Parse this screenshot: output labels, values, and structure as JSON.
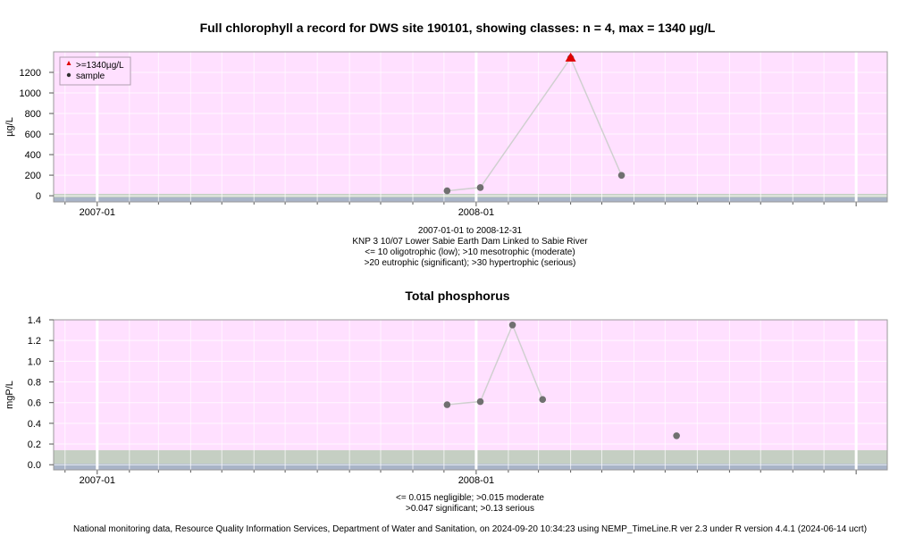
{
  "colors": {
    "panel_bg": "#ffe0ff",
    "lower_band": "#c5cfc3",
    "bottom_band": "#a9b4c8",
    "sample_point": "#707070",
    "sample_line": "#d0d0d0",
    "max_marker": "#e00000",
    "frame": "#999999"
  },
  "footer": "National monitoring data, Resource Quality Information Services, Department of Water and Sanitation, on 2024-09-20 10:34:23 using NEMP_TimeLine.R ver 2.3 under R version 4.4.1 (2024-06-14 ucrt)",
  "chart_data": [
    {
      "type": "line",
      "title": "Full chlorophyll a record for DWS site 190101, showing classes: n = 4, max = 1340 µg/L",
      "ylabel": "µg/L",
      "xlabel": "",
      "x_ticks": [
        "2007-01",
        "2008-01"
      ],
      "y_ticks": [
        0,
        200,
        400,
        600,
        800,
        1000,
        1200
      ],
      "ylim": [
        -60,
        1400
      ],
      "xlim": [
        "2006-11-20",
        "2009-01-31"
      ],
      "grid": true,
      "legend_position": "top-left",
      "legend": [
        ">=1340µg/L",
        "sample"
      ],
      "series": [
        {
          "name": "sample",
          "x": [
            "2007-12-04",
            "2008-01-05",
            "2008-04-01",
            "2008-05-20"
          ],
          "values": [
            48,
            80,
            1340,
            198
          ]
        }
      ],
      "max_markers": [
        {
          "x": "2008-04-01",
          "value": 1340
        }
      ],
      "class_thresholds": [
        10,
        20,
        30
      ],
      "caption": [
        "2007-01-01 to 2008-12-31",
        "KNP 3 10/07 Lower Sabie Earth Dam Linked to Sabie River",
        "<= 10 oligotrophic (low); >10 mesotrophic (moderate)",
        ">20 eutrophic (significant); >30 hypertrophic (serious)"
      ]
    },
    {
      "type": "line",
      "title": "Total phosphorus",
      "ylabel": "mgP/L",
      "xlabel": "",
      "x_ticks": [
        "2007-01",
        "2008-01"
      ],
      "y_ticks": [
        0.0,
        0.2,
        0.4,
        0.6,
        0.8,
        1.0,
        1.2,
        1.4
      ],
      "y_tick_labels": [
        "0.0",
        "0.2",
        "0.4",
        "0.6",
        "0.8",
        "1.0",
        "1.2",
        "1.4"
      ],
      "ylim": [
        -0.05,
        1.4
      ],
      "xlim": [
        "2006-11-20",
        "2009-01-31"
      ],
      "grid": true,
      "series": [
        {
          "name": "",
          "x": [
            "2007-12-04",
            "2008-01-05",
            "2008-02-05",
            "2008-03-05"
          ],
          "values": [
            0.58,
            0.61,
            1.35,
            0.63
          ]
        },
        {
          "name": "",
          "x": [
            "2008-07-12"
          ],
          "values": [
            0.28
          ]
        }
      ],
      "class_thresholds": [
        0.015,
        0.047,
        0.13
      ],
      "caption": [
        "<= 0.015 negligible; >0.015 moderate",
        ">0.047 significant; >0.13 serious"
      ]
    }
  ]
}
